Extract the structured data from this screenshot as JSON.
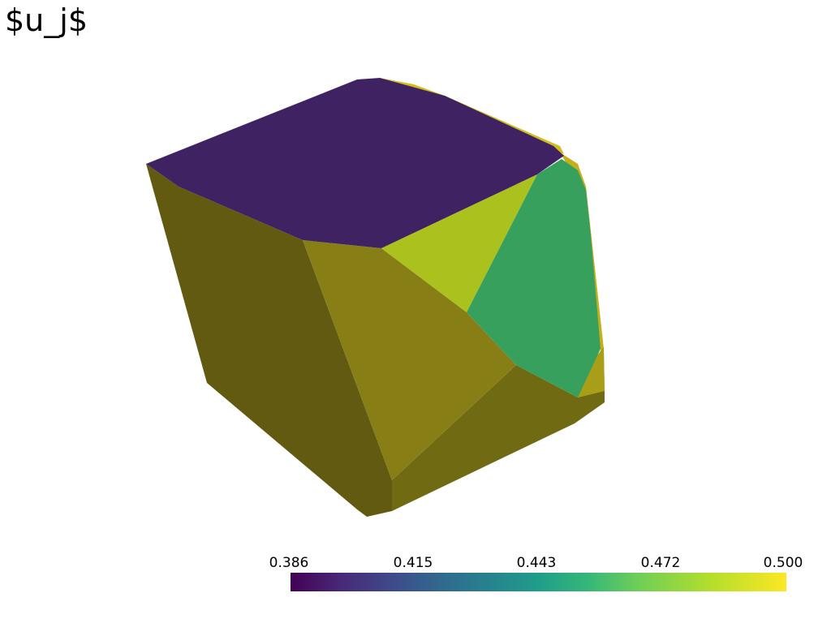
{
  "title": "$u_j$",
  "colorbar": {
    "tick_labels": [
      "0.386",
      "0.415",
      "0.443",
      "0.472",
      "0.500"
    ]
  },
  "colors": {
    "top_face": "#3f2262",
    "left_face": "#625a10",
    "front_face": "#877f16",
    "bottom_face": "#706a12",
    "yellow_green_face": "#aac11e",
    "green_face": "#36a05c",
    "edge_yellow": "#d1bd1c"
  }
}
